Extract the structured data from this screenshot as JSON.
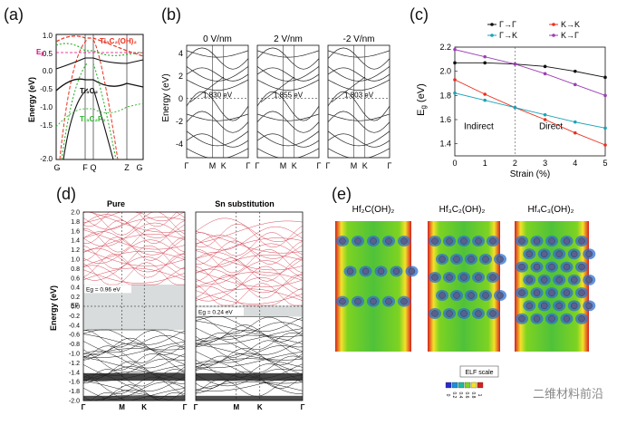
{
  "panel_labels": {
    "a": "(a)",
    "b": "(b)",
    "c": "(c)",
    "d": "(d)",
    "e": "(e)"
  },
  "panel_a": {
    "ylabel": "Energy (eV)",
    "yticks": [
      "1.0",
      "0.5",
      "0.0",
      "-0.5",
      "-1.0",
      "-1.5",
      "-2.0"
    ],
    "xticks": [
      "G",
      "F",
      "Q",
      "Z",
      "G"
    ],
    "ef_label": "E",
    "ef_sub": "F",
    "curve_labels": {
      "t3c2oh2": "Ti₃C₂(OH)₂",
      "t3c2": "Ti₃C₂",
      "t3c2f2": "Ti₃C₂F₂"
    },
    "colors": {
      "t3c2oh2": "#e8311f",
      "t3c2": "#111111",
      "t3c2f2": "#2db32d",
      "ef": "#e6007e"
    }
  },
  "panel_b": {
    "ylabel": "Energy (eV)",
    "yticks": [
      "4",
      "2",
      "0",
      "-2",
      "-4"
    ],
    "xticks": [
      "Γ",
      "M",
      "K",
      "Γ"
    ],
    "subplots": [
      {
        "title": "0 V/nm",
        "gap": "1.830 eV"
      },
      {
        "title": "2 V/nm",
        "gap": "1.855 eV"
      },
      {
        "title": "-2 V/nm",
        "gap": "1.803 eV"
      }
    ]
  },
  "chart_data": {
    "type": "line",
    "xlabel": "Strain (%)",
    "ylabel": "E",
    "ylabel_sub": "g",
    "ylabel_unit": " (eV)",
    "xlim": [
      0,
      5
    ],
    "ylim": [
      1.3,
      2.2
    ],
    "xticks": [
      "0",
      "1",
      "2",
      "3",
      "4",
      "5"
    ],
    "yticks": [
      "1.4",
      "1.6",
      "1.8",
      "2.0",
      "2.2"
    ],
    "annotations": [
      "Indirect",
      "Direct"
    ],
    "divider_x": 2,
    "x": [
      0,
      1,
      2,
      3,
      4,
      5
    ],
    "series": [
      {
        "name": "Γ→Γ",
        "color": "#111111",
        "values": [
          2.07,
          2.07,
          2.06,
          2.04,
          2.0,
          1.95
        ]
      },
      {
        "name": "K→K",
        "color": "#e8311f",
        "values": [
          1.93,
          1.81,
          1.7,
          1.6,
          1.49,
          1.39
        ]
      },
      {
        "name": "Γ→K",
        "color": "#1aa3b8",
        "values": [
          1.82,
          1.76,
          1.7,
          1.64,
          1.58,
          1.53
        ]
      },
      {
        "name": "K→Γ",
        "color": "#9b3fb5",
        "values": [
          2.18,
          2.12,
          2.06,
          1.98,
          1.89,
          1.8
        ]
      }
    ]
  },
  "panel_d": {
    "ylabel": "Energy (eV)",
    "yticks": [
      "2.0",
      "1.8",
      "1.6",
      "1.4",
      "1.2",
      "1.0",
      "0.8",
      "0.6",
      "0.4",
      "0.2",
      "0.0",
      "-0.2",
      "-0.4",
      "-0.6",
      "-0.8",
      "-1.0",
      "-1.2",
      "-1.4",
      "-1.6",
      "-1.8",
      "-2.0"
    ],
    "xticks": [
      "Γ",
      "M",
      "K",
      "Γ"
    ],
    "ef_label": "E",
    "ef_sub": "F",
    "left": {
      "title": "Pure",
      "gap": "Eg = 0.96 eV"
    },
    "right": {
      "title": "Sn substitution",
      "gap": "Eg = 0.24 eV"
    }
  },
  "panel_e": {
    "titles": [
      "Hf₂C(OH)₂",
      "Hf₃C₂(OH)₂",
      "Hf₄C₃(OH)₂"
    ],
    "scale_title": "ELF scale",
    "scale_ticks": [
      "0",
      "0.2",
      "0.4",
      "0.6",
      "0.8",
      "1"
    ]
  },
  "watermark": "二维材料前沿"
}
